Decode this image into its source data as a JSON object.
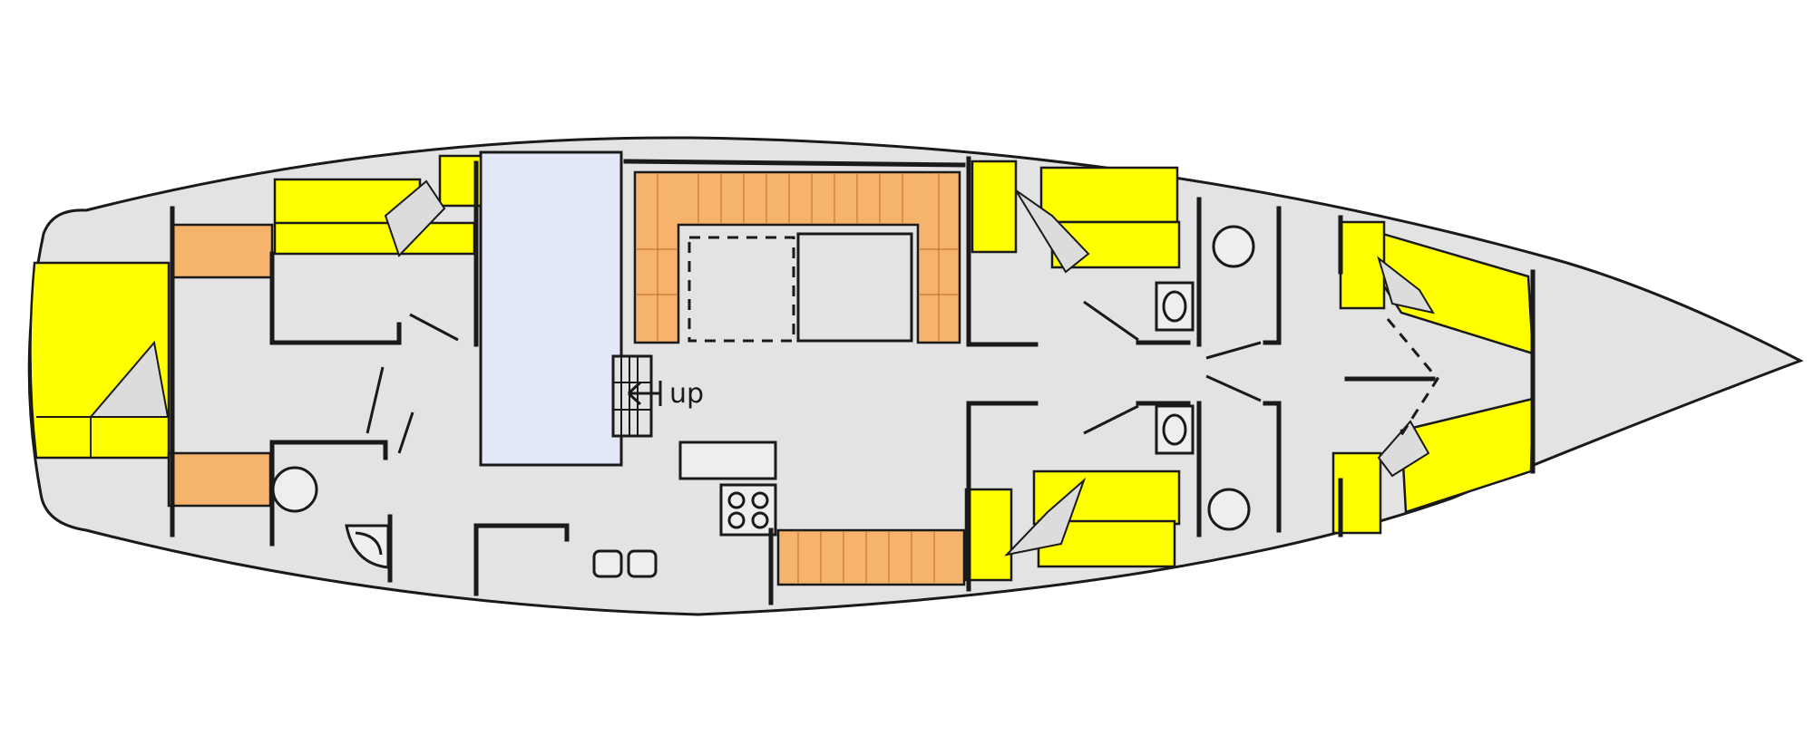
{
  "colors": {
    "background": "#ffffff",
    "hull": "#e3e3e3",
    "berth": "#ffff00",
    "seat": "#f6b36b",
    "companionway": "#e2e8f8",
    "line": "#1a1a1a"
  },
  "companionway_label": "up"
}
